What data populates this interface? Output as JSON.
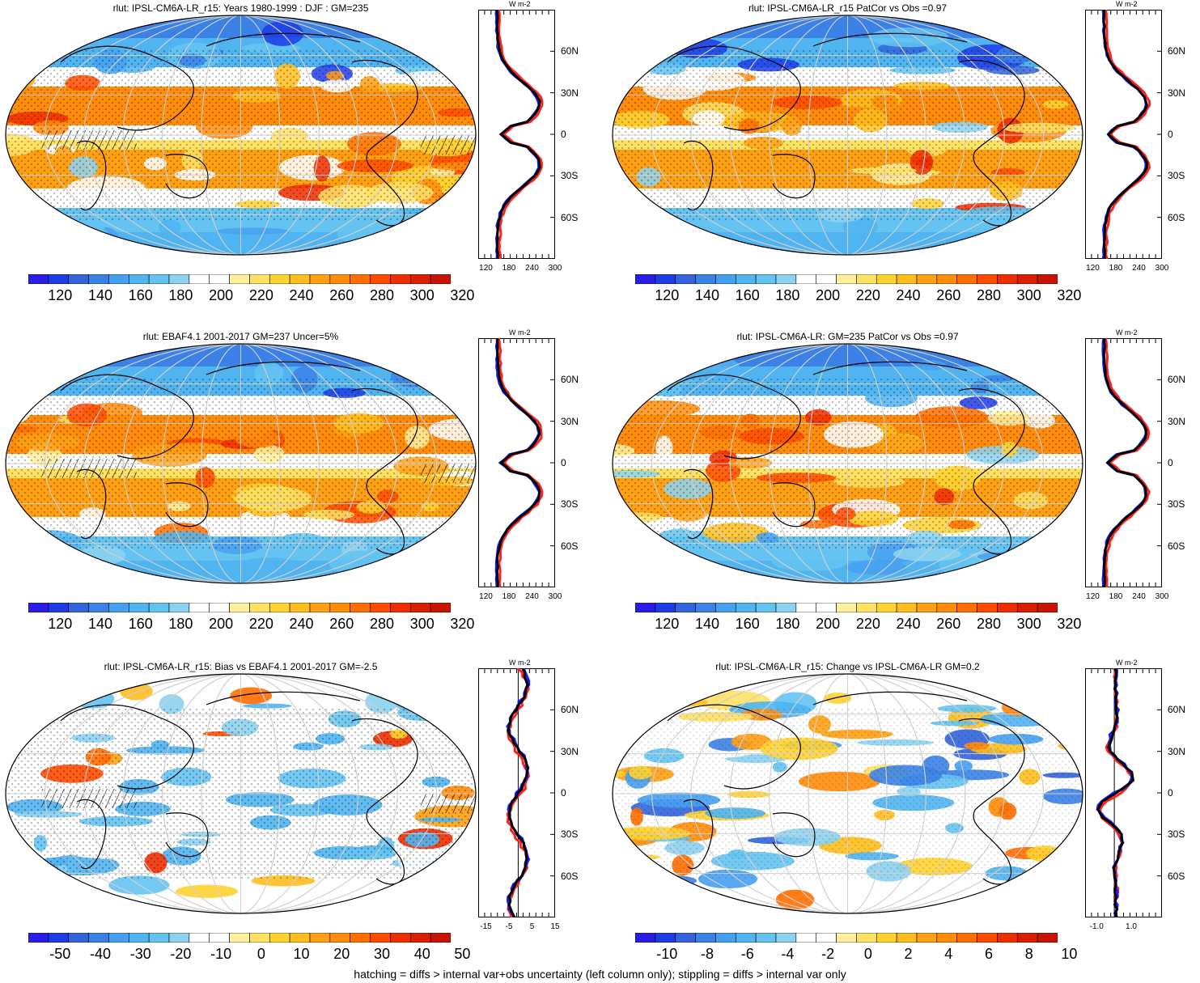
{
  "panels": [
    {
      "id": "p1",
      "title": "rlut: IPSL-CM6A-LR_r15: Years 1980-1999 : DJF : GM=235",
      "kind": "abs",
      "cbar_labels": [
        "120",
        "140",
        "160",
        "180",
        "200",
        "220",
        "240",
        "260",
        "280",
        "300",
        "320"
      ],
      "profile_x": [
        "120",
        "180",
        "240",
        "300"
      ],
      "profile_lat": [
        "60N",
        "30N",
        "0",
        "30S",
        "60S"
      ],
      "unit": "W m-2"
    },
    {
      "id": "p2",
      "title": "rlut: IPSL-CM6A-LR_r15 PatCor vs Obs =0.97",
      "kind": "abs",
      "cbar_labels": [
        "120",
        "140",
        "160",
        "180",
        "200",
        "220",
        "240",
        "260",
        "280",
        "300",
        "320"
      ],
      "profile_x": [
        "120",
        "180",
        "240",
        "300"
      ],
      "profile_lat": [
        "60N",
        "30N",
        "0",
        "30S",
        "60S"
      ],
      "unit": "W m-2"
    },
    {
      "id": "p3",
      "title": "rlut: EBAF4.1 2001-2017 GM=237 Uncer=5%",
      "kind": "abs",
      "cbar_labels": [
        "120",
        "140",
        "160",
        "180",
        "200",
        "220",
        "240",
        "260",
        "280",
        "300",
        "320"
      ],
      "profile_x": [
        "120",
        "180",
        "240",
        "300"
      ],
      "profile_lat": [
        "60N",
        "30N",
        "0",
        "30S",
        "60S"
      ],
      "unit": "W m-2"
    },
    {
      "id": "p4",
      "title": "rlut: IPSL-CM6A-LR: GM=235 PatCor vs Obs =0.97",
      "kind": "abs",
      "cbar_labels": [
        "120",
        "140",
        "160",
        "180",
        "200",
        "220",
        "240",
        "260",
        "280",
        "300",
        "320"
      ],
      "profile_x": [
        "120",
        "180",
        "240",
        "300"
      ],
      "profile_lat": [
        "60N",
        "30N",
        "0",
        "30S",
        "60S"
      ],
      "unit": "W m-2"
    },
    {
      "id": "p5",
      "title": "rlut: IPSL-CM6A-LR_r15: Bias vs EBAF4.1 2001-2017 GM=-2.5",
      "kind": "bias",
      "cbar_labels": [
        "-50",
        "-40",
        "-30",
        "-20",
        "-10",
        "0",
        "10",
        "20",
        "30",
        "40",
        "50"
      ],
      "profile_x": [
        "-15",
        "-5",
        "5",
        "15"
      ],
      "profile_lat": [
        "60N",
        "30N",
        "0",
        "30S",
        "60S"
      ],
      "unit": "W m-2"
    },
    {
      "id": "p6",
      "title": "rlut: IPSL-CM6A-LR_r15: Change vs IPSL-CM6A-LR GM=0.2",
      "kind": "change",
      "cbar_labels": [
        "-10",
        "-8",
        "-6",
        "-4",
        "-2",
        "0",
        "2",
        "4",
        "6",
        "8",
        "10"
      ],
      "profile_x": [
        "-1.0",
        "1.0"
      ],
      "profile_lat": [
        "60N",
        "30N",
        "0",
        "30S",
        "60S"
      ],
      "unit": "W m-2"
    }
  ],
  "colorbar_colors": [
    "#2a1ee6",
    "#1e3ce6",
    "#3264dc",
    "#3c82e6",
    "#46a0f0",
    "#50b4f0",
    "#64c3f0",
    "#8cd2f0",
    "#ffffff",
    "#ffffff",
    "#fff0a0",
    "#ffe164",
    "#ffd232",
    "#ffbe1e",
    "#ffa014",
    "#ff8c0a",
    "#ff6e00",
    "#ff4b00",
    "#f02d00",
    "#dc1e00",
    "#c81400"
  ],
  "profile_colors": {
    "obs": "#ff2020",
    "model": "#1a1aff",
    "model2": "#000000"
  },
  "footer": "hatching = diffs > internal var+obs uncertainty (left column only); stippling = diffs > internal var only"
}
